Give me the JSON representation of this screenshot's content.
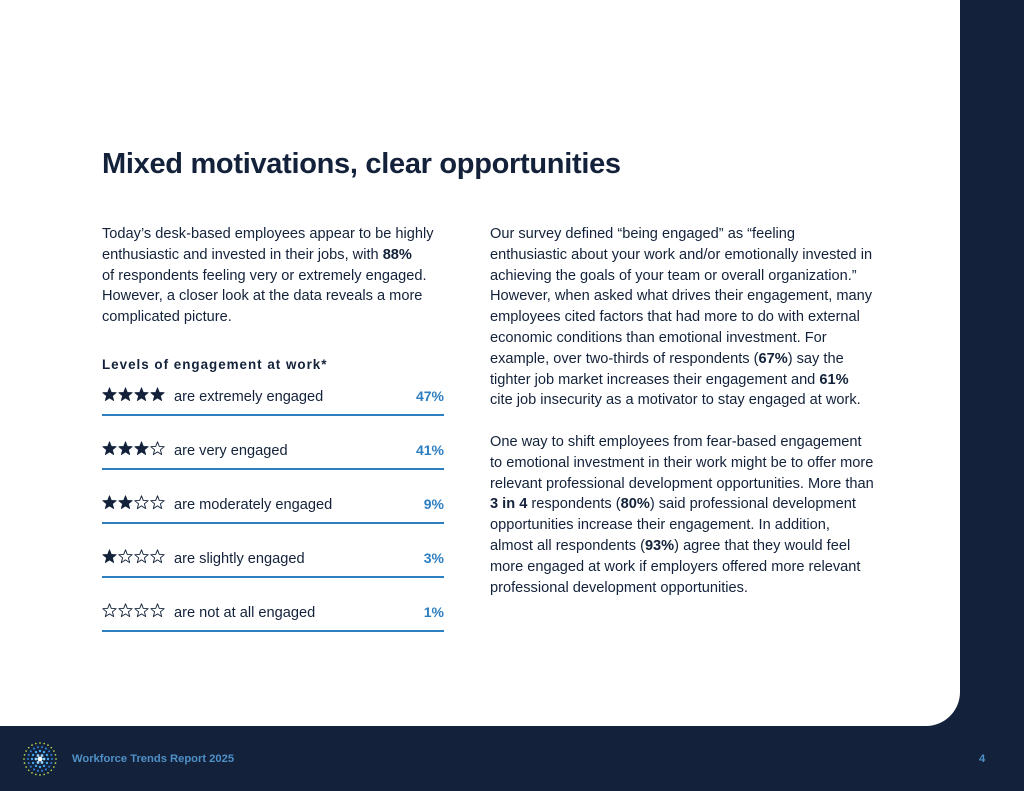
{
  "title": "Mixed motivations, clear opportunities",
  "left_paragraph": {
    "p1": "Today’s desk-based employees appear to be highly enthusiastic and invested in their jobs, with ",
    "p1_bold": "88%",
    "p2": "of respondents feeling very or extremely engaged. However, a closer look at the data reveals a more complicated picture."
  },
  "engagement": {
    "heading": "Levels of engagement at work*",
    "rows": [
      {
        "stars": 4,
        "label": "are extremely engaged",
        "percent": "47%"
      },
      {
        "stars": 3,
        "label": "are very engaged",
        "percent": "41%"
      },
      {
        "stars": 2,
        "label": "are moderately engaged",
        "percent": "9%"
      },
      {
        "stars": 1,
        "label": "are slightly engaged",
        "percent": "3%"
      },
      {
        "stars": 0,
        "label": "are not at all engaged",
        "percent": "1%"
      }
    ]
  },
  "right_paragraph1": {
    "a": "Our survey defined “being engaged” as “feeling enthusiastic about your work and/or emotionally invested in achieving the goals of your team or overall organization.” However, when asked what drives their engagement, many employees cited factors that had more to do with external economic conditions than emotional investment. For example, over two-thirds of respondents (",
    "b": "67%",
    "c": ") say the tighter job market increases their engagement and ",
    "d": "61%",
    "e": " cite job insecurity as a motivator to stay engaged at work."
  },
  "right_paragraph2": {
    "a": "One way to shift employees from fear-based engagement to emotional investment in their work might be to offer more relevant professional development opportunities. More than ",
    "b": "3 in 4",
    "c": " respondents (",
    "d": "80%",
    "e": ") said professional development opportunities increase their engagement. In addition, almost all respondents (",
    "f": "93%",
    "g": ") agree that they would feel more engaged at work if employers offered more relevant professional development opportunities."
  },
  "footer": {
    "report_title": "Workforce Trends Report 2025",
    "page_number": "4",
    "logo_icon": "dotted-burst-logo-icon"
  },
  "colors": {
    "navy": "#13223a",
    "accent_blue": "#2d7fc1",
    "footer_text": "#4f90c8"
  }
}
